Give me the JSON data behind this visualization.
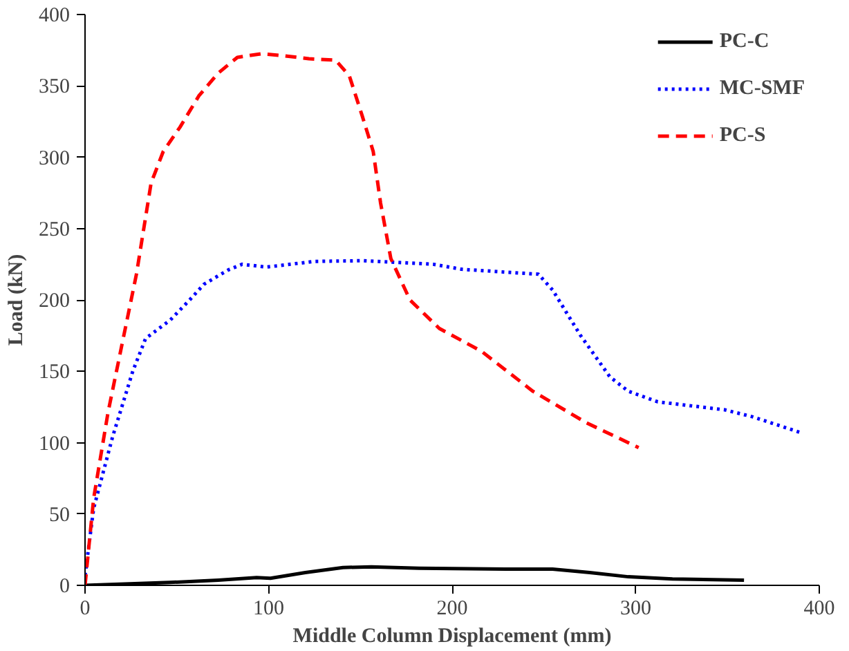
{
  "chart_data": {
    "type": "line",
    "xlabel": "Middle Column Displacement (mm)",
    "ylabel": "Load (kN)",
    "xlim": [
      0,
      400
    ],
    "ylim": [
      0,
      400
    ],
    "xticks": [
      0,
      100,
      200,
      300,
      400
    ],
    "yticks": [
      0,
      50,
      100,
      150,
      200,
      250,
      300,
      350,
      400
    ],
    "grid": false,
    "legend": "top right",
    "marker": "none",
    "series": [
      {
        "name": "PC-C",
        "color": "#000000",
        "line_style": "solid",
        "x": [
          0,
          46,
          72.6,
          93.5,
          101,
          120,
          140.5,
          156,
          182,
          229,
          254.7,
          275,
          296,
          320,
          359
        ],
        "values": [
          0,
          2,
          3.6,
          5.4,
          5,
          9,
          12.5,
          13,
          12,
          11.4,
          11.4,
          9,
          6,
          4.5,
          3.6
        ]
      },
      {
        "name": "MC-SMF",
        "color": "#0000ff",
        "line_style": "dotted",
        "x": [
          0,
          4.7,
          15,
          26,
          33,
          46.5,
          57,
          64.8,
          78,
          85.6,
          98.7,
          125,
          151,
          189.6,
          205,
          247,
          254.7,
          270,
          286,
          296,
          312,
          348.5,
          364,
          390
        ],
        "values": [
          7,
          54,
          104,
          150,
          173,
          186,
          200,
          211,
          221,
          225,
          223,
          227,
          227.5,
          225,
          221.5,
          218,
          207,
          175,
          146,
          136,
          128.6,
          123,
          118,
          107
        ]
      },
      {
        "name": "PC-S",
        "color": "#ff0000",
        "line_style": "dashed",
        "x": [
          0,
          4.7,
          12.5,
          20,
          28,
          36,
          42.6,
          51.7,
          62,
          72.6,
          83,
          96,
          109,
          122,
          136.5,
          144,
          151,
          157,
          161,
          166.6,
          177,
          193,
          216,
          244,
          273,
          301.6
        ],
        "values": [
          0,
          61,
          121,
          168,
          218,
          282,
          304,
          321,
          343,
          359,
          370,
          372.5,
          371,
          369,
          368,
          357,
          329,
          304,
          268,
          229,
          200,
          180,
          164,
          136,
          114,
          96.5
        ]
      }
    ]
  }
}
